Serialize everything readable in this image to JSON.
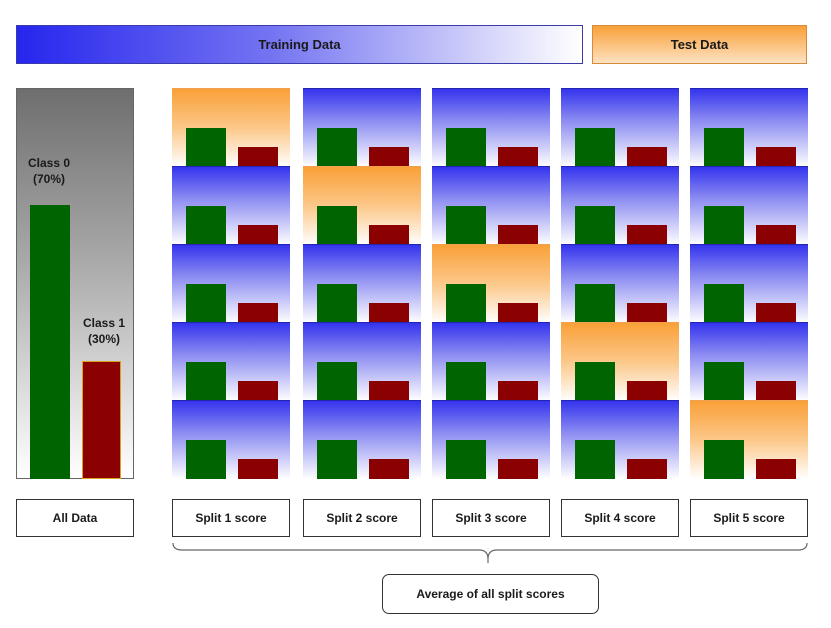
{
  "banners": {
    "training": "Training Data",
    "test": "Test Data"
  },
  "all_data": {
    "class0_label": "Class 0",
    "class0_pct": "(70%)",
    "class1_label": "Class 1",
    "class1_pct": "(30%)",
    "class0_fraction": 0.7,
    "class1_fraction": 0.3,
    "box_label": "All Data"
  },
  "splits": [
    {
      "label": "Split 1 score",
      "test_fold": 1
    },
    {
      "label": "Split 2 score",
      "test_fold": 2
    },
    {
      "label": "Split 3 score",
      "test_fold": 3
    },
    {
      "label": "Split 4 score",
      "test_fold": 4
    },
    {
      "label": "Split 5 score",
      "test_fold": 5
    }
  ],
  "average_label": "Average of all split scores",
  "colors": {
    "train": "#3434ee",
    "test": "#f9a038",
    "class0": "#006400",
    "class1": "#8b0000",
    "all_data": "#6e6e6e"
  }
}
